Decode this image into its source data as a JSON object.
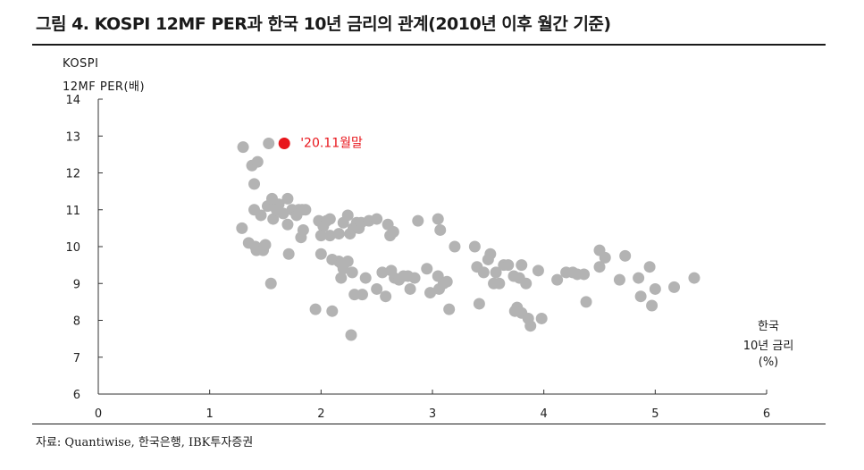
{
  "title": "그림 4. KOSPI 12MF PER과 한국 10년 금리의 관계(2010년 이후 월간 기준)",
  "source": "자료: Quantiwise, 한국은행, IBK투자증권",
  "colors": {
    "points": "#b3b3b3",
    "highlight": "#e8151b",
    "axis": "#333333"
  },
  "chart_data": {
    "type": "scatter",
    "ylabel_line1": "KOSPI",
    "ylabel_line2": "12MF PER(배)",
    "xlabel_line1": "한국",
    "xlabel_line2": "10년 금리",
    "xlabel_line3": "(%)",
    "xlim": [
      0,
      6
    ],
    "ylim": [
      6,
      14
    ],
    "xticks": [
      "0",
      "1",
      "2",
      "3",
      "4",
      "5",
      "6"
    ],
    "yticks": [
      "6",
      "7",
      "8",
      "9",
      "10",
      "11",
      "12",
      "13",
      "14"
    ],
    "grid": false,
    "highlight": {
      "label": "'20.11월말",
      "x": 1.67,
      "y": 12.8
    },
    "points": [
      [
        1.3,
        12.7
      ],
      [
        1.53,
        12.8
      ],
      [
        1.38,
        12.2
      ],
      [
        1.43,
        12.3
      ],
      [
        1.4,
        11.7
      ],
      [
        1.29,
        10.5
      ],
      [
        1.35,
        10.1
      ],
      [
        1.41,
        10.0
      ],
      [
        1.42,
        9.9
      ],
      [
        1.48,
        9.9
      ],
      [
        1.5,
        10.05
      ],
      [
        1.55,
        9.0
      ],
      [
        1.4,
        11.0
      ],
      [
        1.46,
        10.85
      ],
      [
        1.52,
        11.1
      ],
      [
        1.56,
        11.3
      ],
      [
        1.57,
        10.75
      ],
      [
        1.62,
        11.15
      ],
      [
        1.6,
        11.0
      ],
      [
        1.66,
        10.9
      ],
      [
        1.7,
        11.3
      ],
      [
        1.7,
        10.6
      ],
      [
        1.74,
        11.0
      ],
      [
        1.78,
        10.85
      ],
      [
        1.8,
        11.0
      ],
      [
        1.83,
        11.0
      ],
      [
        1.86,
        11.0
      ],
      [
        1.82,
        10.25
      ],
      [
        1.84,
        10.45
      ],
      [
        1.71,
        9.8
      ],
      [
        1.98,
        10.7
      ],
      [
        2.02,
        10.55
      ],
      [
        2.05,
        10.7
      ],
      [
        2.08,
        10.75
      ],
      [
        2.0,
        10.3
      ],
      [
        2.08,
        10.3
      ],
      [
        2.16,
        10.35
      ],
      [
        2.2,
        10.65
      ],
      [
        2.24,
        10.85
      ],
      [
        2.26,
        10.35
      ],
      [
        2.29,
        10.5
      ],
      [
        2.32,
        10.65
      ],
      [
        2.34,
        10.5
      ],
      [
        2.36,
        10.65
      ],
      [
        2.43,
        10.7
      ],
      [
        2.5,
        10.75
      ],
      [
        2.6,
        10.6
      ],
      [
        2.62,
        10.3
      ],
      [
        2.65,
        10.4
      ],
      [
        2.87,
        10.7
      ],
      [
        3.05,
        10.75
      ],
      [
        3.07,
        10.45
      ],
      [
        3.2,
        10.0
      ],
      [
        3.38,
        10.0
      ],
      [
        2.0,
        9.8
      ],
      [
        2.1,
        9.65
      ],
      [
        2.16,
        9.6
      ],
      [
        2.18,
        9.55
      ],
      [
        2.2,
        9.4
      ],
      [
        2.24,
        9.6
      ],
      [
        2.28,
        9.3
      ],
      [
        2.18,
        9.15
      ],
      [
        2.3,
        8.7
      ],
      [
        2.37,
        8.7
      ],
      [
        2.4,
        9.15
      ],
      [
        2.5,
        8.85
      ],
      [
        2.55,
        9.3
      ],
      [
        2.58,
        8.65
      ],
      [
        2.63,
        9.35
      ],
      [
        2.66,
        9.15
      ],
      [
        2.7,
        9.1
      ],
      [
        2.74,
        9.2
      ],
      [
        2.78,
        9.2
      ],
      [
        2.8,
        8.85
      ],
      [
        2.84,
        9.15
      ],
      [
        2.95,
        9.4
      ],
      [
        2.98,
        8.75
      ],
      [
        3.05,
        9.2
      ],
      [
        3.06,
        8.85
      ],
      [
        3.1,
        9.0
      ],
      [
        3.13,
        9.05
      ],
      [
        3.15,
        8.3
      ],
      [
        3.4,
        9.45
      ],
      [
        3.42,
        8.45
      ],
      [
        3.46,
        9.3
      ],
      [
        3.5,
        9.65
      ],
      [
        3.52,
        9.8
      ],
      [
        3.55,
        9.0
      ],
      [
        3.57,
        9.3
      ],
      [
        3.6,
        9.0
      ],
      [
        3.64,
        9.5
      ],
      [
        3.68,
        9.5
      ],
      [
        3.73,
        9.2
      ],
      [
        3.78,
        9.15
      ],
      [
        3.8,
        9.5
      ],
      [
        3.84,
        9.0
      ],
      [
        3.76,
        8.35
      ],
      [
        3.8,
        8.2
      ],
      [
        3.86,
        8.05
      ],
      [
        3.88,
        7.85
      ],
      [
        3.95,
        9.35
      ],
      [
        3.98,
        8.05
      ],
      [
        3.74,
        8.25
      ],
      [
        4.12,
        9.1
      ],
      [
        4.2,
        9.3
      ],
      [
        4.26,
        9.3
      ],
      [
        4.3,
        9.25
      ],
      [
        4.36,
        9.25
      ],
      [
        4.38,
        8.5
      ],
      [
        4.5,
        9.9
      ],
      [
        4.55,
        9.7
      ],
      [
        4.5,
        9.45
      ],
      [
        4.68,
        9.1
      ],
      [
        4.73,
        9.75
      ],
      [
        4.85,
        9.15
      ],
      [
        4.87,
        8.65
      ],
      [
        4.95,
        9.45
      ],
      [
        4.97,
        8.4
      ],
      [
        5.0,
        8.85
      ],
      [
        5.17,
        8.9
      ],
      [
        5.35,
        9.15
      ],
      [
        1.95,
        8.3
      ],
      [
        2.1,
        8.25
      ],
      [
        2.27,
        7.6
      ]
    ]
  }
}
